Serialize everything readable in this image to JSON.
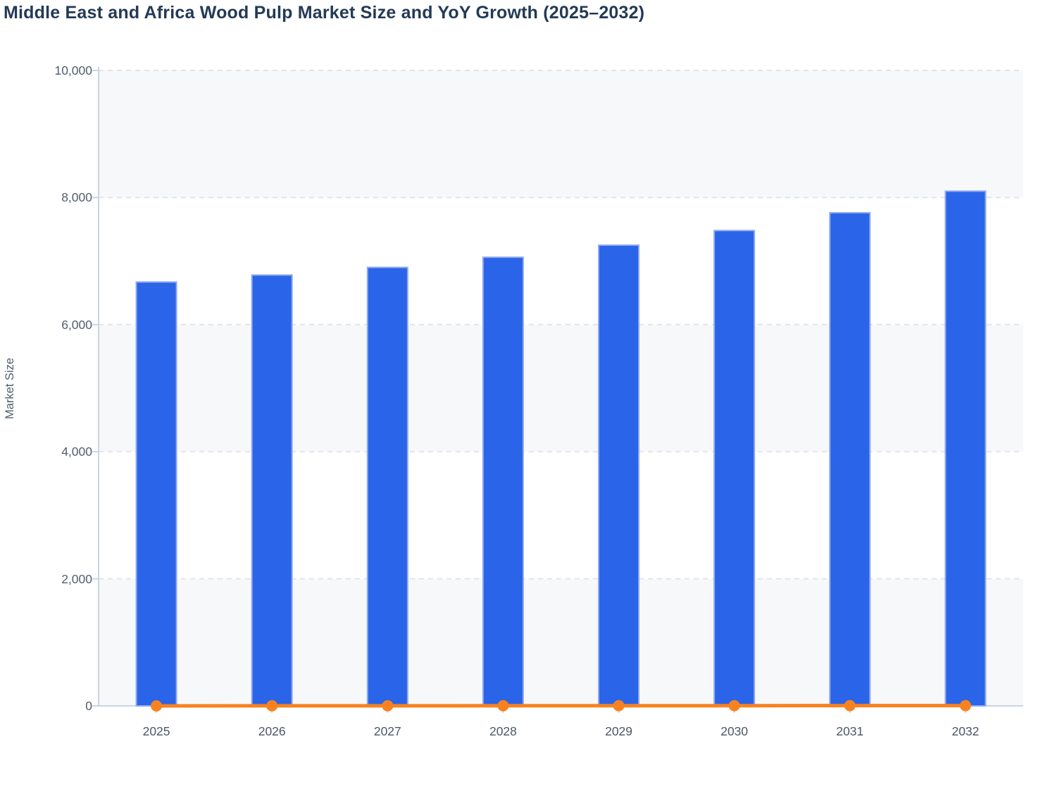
{
  "header": {
    "title": "Middle East and Africa Wood Pulp Market Size and YoY Growth (2025–2032)"
  },
  "chart_data": {
    "type": "bar",
    "subtype": "bar-with-line-overlay",
    "title": "Middle East and Africa Wood Pulp Market Size and YoY Growth (2025–2032)",
    "categories": [
      "2025",
      "2026",
      "2027",
      "2028",
      "2029",
      "2030",
      "2031",
      "2032"
    ],
    "series": [
      {
        "name": "Market Size",
        "type": "bar",
        "color": "#2a64e8",
        "values": [
          6670,
          6780,
          6900,
          7060,
          7250,
          7480,
          7760,
          8100
        ]
      },
      {
        "name": "YoY Growth",
        "type": "line",
        "color": "#f8821f",
        "values": [
          0,
          1.6,
          1.8,
          2.3,
          2.7,
          3.2,
          3.7,
          4.4
        ],
        "note_rendered_flat_at_zero_on_left_axis": true
      }
    ],
    "xlabel": "",
    "ylabel": "Market Size",
    "ylim": [
      0,
      10000
    ],
    "y_ticks": [
      {
        "value": 0,
        "label": "0"
      },
      {
        "value": 2000,
        "label": "2,000"
      },
      {
        "value": 4000,
        "label": "4,000"
      },
      {
        "value": 6000,
        "label": "6,000"
      },
      {
        "value": 8000,
        "label": "8,000"
      },
      {
        "value": 10000,
        "label": "10,000"
      }
    ],
    "grid": "horizontal dashed",
    "legend": "none",
    "plot_background": "alternating horizontal bands"
  },
  "colors": {
    "bar_fill": "#2a64e8",
    "bar_stroke": "#8fa9f0",
    "line_orange": "#f8821f",
    "band_light": "#f7f8fa",
    "band_white": "#ffffff",
    "gridline": "#e2e4e9",
    "axis": "#ccd3e4",
    "title_text": "#243a56",
    "tick_text": "#525e6e",
    "page_background": "#ffffff"
  }
}
